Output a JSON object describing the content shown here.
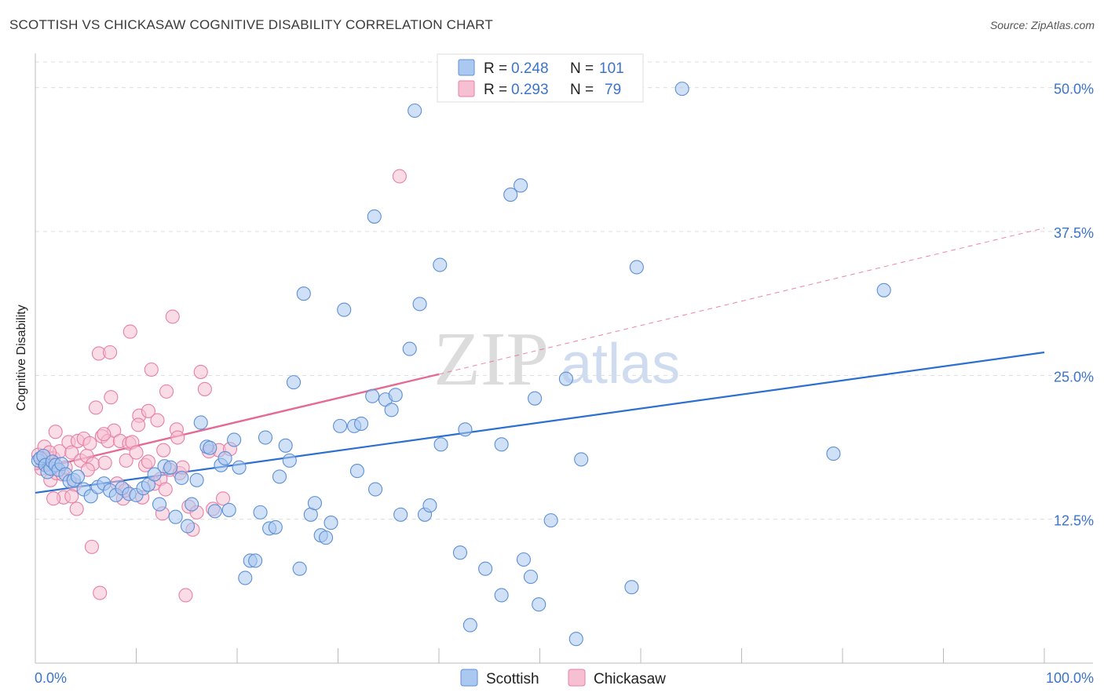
{
  "title": "SCOTTISH VS CHICKASAW COGNITIVE DISABILITY CORRELATION CHART",
  "source": "Source: ZipAtlas.com",
  "watermark": {
    "zip": "ZIP",
    "atlas": "atlas"
  },
  "colors": {
    "scottish": "#5b8fd6",
    "scottish_fill": "#aac8f0",
    "scottish_line": "#2b6fd0",
    "chickasaw": "#e87fa3",
    "chickasaw_fill": "#f6bfd2",
    "chickasaw_line": "#e46a94",
    "tick_text": "#3b74c9",
    "grid": "#dddddd"
  },
  "legend": {
    "r_label": "R =",
    "n_label": "N =",
    "scottish_r": "0.248",
    "scottish_n": "101",
    "chickasaw_r": "0.293",
    "chickasaw_n": "79"
  },
  "chart_data": {
    "type": "scatter",
    "title": "SCOTTISH VS CHICKASAW COGNITIVE DISABILITY CORRELATION CHART",
    "xlabel": "",
    "ylabel": "Cognitive Disability",
    "xlim": [
      0,
      100
    ],
    "ylim": [
      0,
      52.5
    ],
    "x_tick_labels": [
      "0.0%",
      "100.0%"
    ],
    "y_ticks": [
      12.5,
      25.0,
      37.5,
      50.0
    ],
    "y_tick_labels": [
      "12.5%",
      "25.0%",
      "37.5%",
      "50.0%"
    ],
    "grid": true,
    "legend_position": "top-center",
    "series": [
      {
        "name": "Scottish",
        "r": 0.248,
        "n": 101,
        "trend": {
          "x": [
            0,
            100
          ],
          "y": [
            14.8,
            27.0
          ],
          "dashed_extension": false
        },
        "points": [
          [
            0.3,
            17.6
          ],
          [
            0.5,
            17.8
          ],
          [
            0.8,
            18.0
          ],
          [
            1.0,
            17.2
          ],
          [
            1.2,
            16.6
          ],
          [
            1.5,
            16.9
          ],
          [
            1.7,
            17.5
          ],
          [
            2.0,
            17.2
          ],
          [
            2.3,
            16.8
          ],
          [
            2.6,
            17.3
          ],
          [
            3.0,
            16.4
          ],
          [
            3.4,
            15.8
          ],
          [
            3.8,
            15.9
          ],
          [
            4.2,
            16.2
          ],
          [
            4.8,
            15.1
          ],
          [
            5.5,
            14.5
          ],
          [
            6.2,
            15.3
          ],
          [
            6.8,
            15.6
          ],
          [
            7.4,
            15.0
          ],
          [
            8.0,
            14.6
          ],
          [
            8.6,
            15.2
          ],
          [
            9.3,
            14.7
          ],
          [
            10.0,
            14.6
          ],
          [
            10.7,
            15.2
          ],
          [
            11.2,
            15.5
          ],
          [
            11.8,
            16.4
          ],
          [
            12.3,
            13.8
          ],
          [
            12.8,
            17.1
          ],
          [
            13.4,
            17.0
          ],
          [
            13.9,
            12.7
          ],
          [
            14.5,
            16.1
          ],
          [
            15.1,
            11.9
          ],
          [
            15.5,
            13.8
          ],
          [
            16.0,
            15.9
          ],
          [
            16.4,
            20.9
          ],
          [
            17.0,
            18.8
          ],
          [
            17.3,
            18.7
          ],
          [
            17.8,
            13.2
          ],
          [
            18.4,
            17.2
          ],
          [
            18.8,
            17.8
          ],
          [
            19.2,
            13.3
          ],
          [
            19.7,
            19.4
          ],
          [
            20.2,
            17.0
          ],
          [
            20.8,
            7.4
          ],
          [
            21.3,
            8.9
          ],
          [
            21.8,
            8.9
          ],
          [
            22.3,
            13.1
          ],
          [
            22.8,
            19.6
          ],
          [
            23.2,
            11.7
          ],
          [
            23.8,
            11.8
          ],
          [
            24.2,
            16.2
          ],
          [
            24.8,
            18.9
          ],
          [
            25.2,
            17.6
          ],
          [
            25.6,
            24.4
          ],
          [
            26.2,
            8.2
          ],
          [
            26.6,
            32.1
          ],
          [
            27.3,
            12.9
          ],
          [
            27.7,
            13.9
          ],
          [
            28.3,
            11.1
          ],
          [
            28.8,
            10.9
          ],
          [
            29.3,
            12.2
          ],
          [
            30.2,
            20.6
          ],
          [
            30.6,
            30.7
          ],
          [
            31.6,
            20.6
          ],
          [
            31.9,
            16.7
          ],
          [
            32.3,
            20.8
          ],
          [
            33.4,
            23.2
          ],
          [
            33.6,
            38.8
          ],
          [
            33.7,
            15.1
          ],
          [
            34.7,
            22.9
          ],
          [
            35.3,
            22.0
          ],
          [
            35.7,
            23.3
          ],
          [
            36.2,
            12.9
          ],
          [
            37.1,
            27.3
          ],
          [
            37.6,
            48.0
          ],
          [
            38.1,
            31.2
          ],
          [
            38.6,
            12.9
          ],
          [
            39.1,
            13.7
          ],
          [
            40.1,
            34.6
          ],
          [
            40.2,
            19.0
          ],
          [
            42.1,
            9.6
          ],
          [
            42.6,
            20.3
          ],
          [
            43.1,
            3.3
          ],
          [
            44.6,
            8.2
          ],
          [
            46.2,
            5.9
          ],
          [
            46.2,
            19.0
          ],
          [
            47.1,
            40.7
          ],
          [
            48.1,
            41.5
          ],
          [
            48.4,
            9.0
          ],
          [
            49.1,
            7.5
          ],
          [
            49.5,
            23.0
          ],
          [
            49.9,
            5.1
          ],
          [
            51.1,
            12.4
          ],
          [
            52.6,
            24.7
          ],
          [
            53.6,
            2.1
          ],
          [
            54.1,
            17.7
          ],
          [
            59.1,
            6.6
          ],
          [
            59.6,
            34.4
          ],
          [
            64.1,
            49.9
          ],
          [
            79.1,
            18.2
          ],
          [
            84.1,
            32.4
          ]
        ]
      },
      {
        "name": "Chickasaw",
        "r": 0.293,
        "n": 79,
        "trend": {
          "x": [
            0,
            40
          ],
          "y": [
            16.8,
            25.1
          ],
          "dashed_extension": true,
          "extension_to": [
            100,
            37.8
          ]
        },
        "points": [
          [
            0.3,
            18.1
          ],
          [
            0.6,
            16.9
          ],
          [
            0.9,
            17.3
          ],
          [
            1.2,
            17.9
          ],
          [
            1.5,
            15.9
          ],
          [
            1.8,
            17.8
          ],
          [
            2.1,
            16.5
          ],
          [
            2.4,
            18.4
          ],
          [
            2.7,
            16.4
          ],
          [
            3.0,
            17.0
          ],
          [
            3.3,
            19.2
          ],
          [
            3.6,
            18.3
          ],
          [
            3.9,
            15.5
          ],
          [
            4.2,
            19.3
          ],
          [
            4.5,
            17.6
          ],
          [
            4.8,
            19.5
          ],
          [
            5.1,
            18.0
          ],
          [
            5.4,
            19.1
          ],
          [
            5.7,
            17.3
          ],
          [
            6.0,
            22.2
          ],
          [
            6.3,
            26.9
          ],
          [
            6.6,
            19.7
          ],
          [
            6.9,
            17.4
          ],
          [
            7.2,
            19.3
          ],
          [
            7.5,
            23.1
          ],
          [
            7.8,
            20.2
          ],
          [
            8.1,
            15.6
          ],
          [
            8.4,
            19.3
          ],
          [
            8.7,
            14.3
          ],
          [
            9.0,
            17.6
          ],
          [
            9.3,
            19.1
          ],
          [
            9.6,
            19.2
          ],
          [
            10.0,
            18.3
          ],
          [
            10.3,
            21.5
          ],
          [
            10.6,
            14.4
          ],
          [
            10.9,
            17.2
          ],
          [
            11.2,
            21.9
          ],
          [
            11.5,
            25.5
          ],
          [
            11.8,
            15.6
          ],
          [
            12.1,
            21.1
          ],
          [
            12.4,
            16.0
          ],
          [
            12.7,
            18.5
          ],
          [
            13.0,
            23.6
          ],
          [
            13.3,
            16.8
          ],
          [
            13.6,
            30.1
          ],
          [
            14.0,
            20.3
          ],
          [
            14.3,
            16.5
          ],
          [
            14.6,
            17.0
          ],
          [
            14.9,
            5.9
          ],
          [
            15.2,
            13.6
          ],
          [
            15.6,
            11.6
          ],
          [
            16.0,
            13.1
          ],
          [
            16.4,
            25.3
          ],
          [
            16.8,
            23.8
          ],
          [
            17.2,
            18.4
          ],
          [
            17.6,
            13.4
          ],
          [
            18.2,
            18.5
          ],
          [
            2.8,
            14.4
          ],
          [
            5.6,
            10.1
          ],
          [
            6.4,
            6.1
          ],
          [
            9.4,
            28.8
          ],
          [
            7.4,
            27.0
          ],
          [
            1.8,
            14.3
          ],
          [
            3.6,
            14.5
          ],
          [
            11.2,
            17.5
          ],
          [
            5.2,
            16.8
          ],
          [
            4.1,
            13.4
          ],
          [
            8.9,
            15.0
          ],
          [
            12.6,
            13.0
          ],
          [
            14.1,
            19.6
          ],
          [
            18.6,
            14.3
          ],
          [
            19.3,
            18.6
          ],
          [
            36.1,
            42.3
          ],
          [
            2.0,
            20.1
          ],
          [
            6.8,
            19.9
          ],
          [
            10.2,
            20.7
          ],
          [
            12.9,
            15.1
          ],
          [
            0.9,
            18.8
          ],
          [
            1.4,
            18.3
          ]
        ]
      }
    ]
  }
}
